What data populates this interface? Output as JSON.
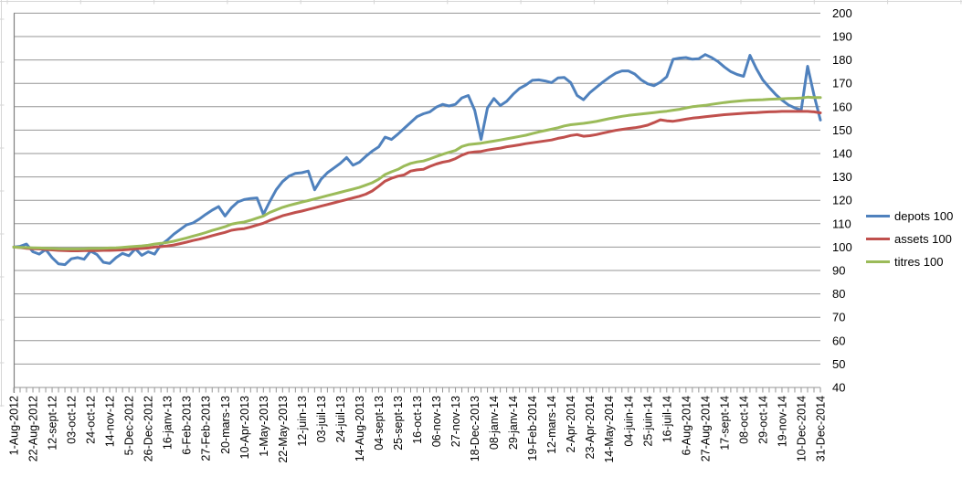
{
  "window": {
    "background": "#ffffff",
    "type": "excel-embedded-line-chart"
  },
  "colors": {
    "series_blue": "#4F81BD",
    "series_red": "#C0504D",
    "series_green": "#9BBB59",
    "gridline": "#969696",
    "axis_line": "#808080",
    "spreadsheet_remnant": "#d6d6d6",
    "label_text": "#000000"
  },
  "legend": {
    "items": [
      {
        "label": "depots 100",
        "color": "#4F81BD"
      },
      {
        "label": "assets 100",
        "color": "#C0504D"
      },
      {
        "label": "titres 100",
        "color": "#9BBB59"
      }
    ]
  },
  "chart_data": {
    "type": "line",
    "title": "",
    "xlabel": "",
    "ylabel": "",
    "ylim": [
      40,
      200
    ],
    "y_tick_step": 10,
    "y_axis_side": "right",
    "y_tick_labels": [
      "200",
      "190",
      "180",
      "170",
      "160",
      "150",
      "140",
      "130",
      "120",
      "110",
      "100",
      "90",
      "80",
      "70",
      "60",
      "50",
      "40"
    ],
    "grid": "horizontal-only",
    "legend_position": "right",
    "points_per_label": 3,
    "x_frequency": "weekly",
    "x_tick_labels": [
      "1-Aug-2012",
      "22-Aug-2012",
      "12-sept-12",
      "03-oct-12",
      "24-oct-12",
      "14-nov-12",
      "5-Dec-2012",
      "26-Dec-2012",
      "16-janv-13",
      "6-Feb-2013",
      "27-Feb-2013",
      "20-mars-13",
      "10-Apr-2013",
      "1-May-2013",
      "22-May-2013",
      "12-juin-13",
      "03-juil-13",
      "24-juil-13",
      "14-Aug-2013",
      "04-sept-13",
      "25-sept-13",
      "16-oct-13",
      "06-nov-13",
      "27-nov-13",
      "18-Dec-2013",
      "08-janv-14",
      "29-janv-14",
      "19-Feb-2014",
      "12-mars-14",
      "2-Apr-2014",
      "23-Apr-2014",
      "14-May-2014",
      "04-juin-14",
      "25-juin-14",
      "16-juil-14",
      "6-Aug-2014",
      "27-Aug-2014",
      "17-sept-14",
      "08-oct-14",
      "29-oct-14",
      "19-nov-14",
      "10-Dec-2014",
      "31-Dec-2014"
    ],
    "series": [
      {
        "name": "depots 100",
        "color": "#4F81BD",
        "values": [
          100,
          100.3,
          101.3,
          98,
          97,
          99,
          95.5,
          92.8,
          92.5,
          95,
          95.5,
          94.8,
          98.3,
          96.8,
          93.5,
          93,
          95.5,
          97.3,
          96.3,
          99.3,
          96.5,
          98,
          97,
          101,
          103,
          105.5,
          107.5,
          109.5,
          110.3,
          112,
          114,
          115.8,
          117.3,
          113.3,
          116.8,
          119.3,
          120.3,
          120.8,
          121,
          114,
          119.5,
          124.5,
          128,
          130.3,
          131.5,
          131.8,
          132.5,
          124.5,
          129,
          131.8,
          133.8,
          135.8,
          138.3,
          135,
          136.3,
          138.8,
          141,
          142.8,
          147,
          146,
          148.3,
          150.8,
          153.3,
          155.8,
          157,
          157.8,
          159.8,
          161,
          160.3,
          161,
          163.8,
          164.8,
          158.5,
          146,
          159.5,
          163.5,
          160.5,
          162.3,
          165.3,
          167.8,
          169.3,
          171.3,
          171.5,
          171,
          170.3,
          172.3,
          172.5,
          170.3,
          164.8,
          163,
          166,
          168.3,
          170.5,
          172.5,
          174.3,
          175.3,
          175.3,
          174,
          171.5,
          169.8,
          169,
          170.5,
          172.8,
          180.3,
          180.8,
          181,
          180.3,
          180.5,
          182.3,
          181,
          179.3,
          177,
          175,
          173.8,
          173,
          182,
          176.3,
          171.5,
          168.3,
          165.3,
          162.8,
          160.8,
          159.5,
          158.5,
          177.3,
          165,
          154.3
        ]
      },
      {
        "name": "assets 100",
        "color": "#C0504D",
        "values": [
          100,
          99.8,
          99.5,
          99.3,
          99.2,
          99,
          98.8,
          98.6,
          98.5,
          98.4,
          98.4,
          98.5,
          98.5,
          98.5,
          98.6,
          98.6,
          98.7,
          98.8,
          99,
          99.3,
          99.4,
          99.6,
          100,
          100.2,
          100.5,
          100.9,
          101.5,
          102.1,
          102.8,
          103.4,
          104.1,
          104.9,
          105.6,
          106.3,
          107.2,
          107.6,
          107.9,
          108.6,
          109.4,
          110.2,
          111.4,
          112.4,
          113.4,
          114.1,
          114.8,
          115.4,
          116.1,
          116.8,
          117.5,
          118.2,
          118.9,
          119.6,
          120.3,
          121,
          121.7,
          122.6,
          124,
          126,
          128.2,
          129.4,
          130.3,
          130.9,
          132.5,
          133,
          133.3,
          134.5,
          135.5,
          136.3,
          136.8,
          137.8,
          139.3,
          140.3,
          140.7,
          140.9,
          141.5,
          141.9,
          142.3,
          142.9,
          143.3,
          143.7,
          144.2,
          144.6,
          145,
          145.4,
          145.8,
          146.5,
          147,
          147.7,
          148.1,
          147.4,
          147.6,
          148.1,
          148.7,
          149.3,
          149.9,
          150.3,
          150.7,
          151,
          151.5,
          152.1,
          153.2,
          154.4,
          154,
          153.8,
          154.2,
          154.7,
          155.1,
          155.4,
          155.7,
          156,
          156.3,
          156.6,
          156.8,
          157,
          157.2,
          157.4,
          157.5,
          157.7,
          157.8,
          157.9,
          158,
          158,
          158,
          158,
          158,
          157.8,
          157.4
        ]
      },
      {
        "name": "titres 100",
        "color": "#9BBB59",
        "values": [
          100,
          99.9,
          99.8,
          99.7,
          99.6,
          99.5,
          99.4,
          99.3,
          99.2,
          99.2,
          99.2,
          99.3,
          99.4,
          99.4,
          99.5,
          99.6,
          99.7,
          99.9,
          100.1,
          100.3,
          100.5,
          100.8,
          101.3,
          101.6,
          102,
          102.5,
          103.2,
          103.9,
          104.7,
          105.4,
          106.2,
          107.1,
          107.9,
          108.7,
          109.8,
          110.3,
          110.7,
          111.5,
          112.4,
          113.3,
          114.8,
          115.9,
          117,
          117.8,
          118.5,
          119.2,
          119.9,
          120.6,
          121.3,
          122,
          122.7,
          123.4,
          124.1,
          124.8,
          125.5,
          126.5,
          127.5,
          129,
          131,
          132.2,
          133.2,
          134.7,
          135.8,
          136.4,
          136.8,
          137.7,
          138.7,
          139.7,
          140.5,
          141.3,
          143,
          143.8,
          144.1,
          144.4,
          144.9,
          145.3,
          145.8,
          146.3,
          146.8,
          147.3,
          147.8,
          148.5,
          149.2,
          149.8,
          150.4,
          151,
          151.8,
          152.3,
          152.6,
          152.9,
          153.3,
          153.7,
          154.3,
          154.9,
          155.4,
          155.9,
          156.3,
          156.6,
          156.9,
          157.2,
          157.5,
          157.8,
          158.1,
          158.5,
          158.9,
          159.5,
          160,
          160.3,
          160.6,
          161,
          161.4,
          161.8,
          162.1,
          162.4,
          162.6,
          162.8,
          162.9,
          163,
          163.2,
          163.3,
          163.4,
          163.5,
          163.6,
          163.7,
          164.1,
          163.9,
          163.9
        ]
      }
    ]
  }
}
